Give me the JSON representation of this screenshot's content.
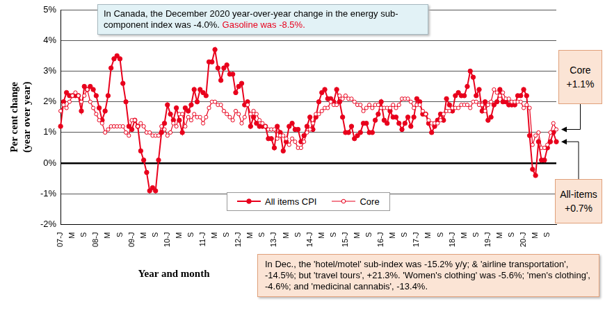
{
  "chart_data": {
    "type": "line",
    "x_label": "Year and month",
    "y_label": [
      "Per cent change",
      "(year over year)"
    ],
    "categories": [
      "07-J",
      null,
      null,
      null,
      "M",
      null,
      null,
      null,
      "S",
      null,
      null,
      null,
      "08-J",
      null,
      null,
      null,
      "M",
      null,
      null,
      null,
      "S",
      null,
      null,
      null,
      "09-J",
      null,
      null,
      null,
      "M",
      null,
      null,
      null,
      "S",
      null,
      null,
      null,
      "10-J",
      null,
      null,
      null,
      "M",
      null,
      null,
      null,
      "S",
      null,
      null,
      null,
      "11-J",
      null,
      null,
      null,
      "M",
      null,
      null,
      null,
      "S",
      null,
      null,
      null,
      "12-J",
      null,
      null,
      null,
      "M",
      null,
      null,
      null,
      "S",
      null,
      null,
      null,
      "13-J",
      null,
      null,
      null,
      "M",
      null,
      null,
      null,
      "S",
      null,
      null,
      null,
      "14-J",
      null,
      null,
      null,
      "M",
      null,
      null,
      null,
      "S",
      null,
      null,
      null,
      "15-J",
      null,
      null,
      null,
      "M",
      null,
      null,
      null,
      "S",
      null,
      null,
      null,
      "16-J",
      null,
      null,
      null,
      "M",
      null,
      null,
      null,
      "S",
      null,
      null,
      null,
      "17-J",
      null,
      null,
      null,
      "M",
      null,
      null,
      null,
      "S",
      null,
      null,
      null,
      "18-J",
      null,
      null,
      null,
      "M",
      null,
      null,
      null,
      "S",
      null,
      null,
      null,
      "19-J",
      null,
      null,
      null,
      "M",
      null,
      null,
      null,
      "S",
      null,
      null,
      null,
      "20-J",
      null,
      null,
      null,
      "M",
      null,
      null,
      null,
      "S",
      null,
      null,
      null
    ],
    "series": [
      {
        "name": "All items CPI",
        "color": "#e8001c",
        "marker": "circle",
        "line_style": "solid",
        "values": [
          1.2,
          2.0,
          2.3,
          2.2,
          2.2,
          2.2,
          2.2,
          1.7,
          2.5,
          2.4,
          2.5,
          2.4,
          2.2,
          1.8,
          1.4,
          1.7,
          2.2,
          3.1,
          3.4,
          3.5,
          3.4,
          2.6,
          2.0,
          1.2,
          1.1,
          1.4,
          1.2,
          0.4,
          0.1,
          -0.3,
          -0.9,
          -0.8,
          -0.9,
          0.1,
          1.0,
          1.3,
          1.9,
          1.6,
          1.4,
          1.8,
          1.4,
          1.0,
          1.8,
          1.7,
          1.9,
          2.4,
          2.0,
          2.4,
          2.3,
          2.2,
          3.3,
          3.3,
          3.7,
          3.1,
          2.7,
          3.1,
          3.2,
          2.9,
          2.9,
          2.3,
          2.5,
          2.6,
          1.9,
          2.0,
          1.2,
          1.5,
          1.3,
          1.2,
          1.2,
          1.2,
          0.8,
          0.8,
          0.5,
          1.2,
          1.0,
          0.4,
          0.7,
          1.2,
          1.3,
          1.1,
          1.1,
          0.7,
          0.9,
          1.2,
          1.5,
          1.1,
          1.5,
          2.0,
          2.3,
          2.4,
          2.1,
          2.1,
          2.0,
          2.4,
          2.0,
          1.5,
          1.0,
          1.0,
          1.2,
          0.8,
          0.9,
          1.0,
          1.3,
          1.3,
          1.0,
          1.0,
          1.4,
          1.6,
          2.0,
          1.4,
          1.3,
          1.7,
          1.5,
          1.5,
          1.3,
          1.1,
          1.3,
          1.5,
          1.2,
          1.5,
          2.1,
          2.0,
          1.6,
          1.6,
          1.3,
          1.0,
          1.2,
          1.4,
          1.6,
          1.4,
          2.1,
          1.9,
          1.7,
          2.2,
          2.3,
          2.2,
          2.2,
          2.5,
          3.0,
          2.8,
          2.2,
          2.4,
          1.7,
          2.0,
          1.4,
          1.5,
          1.9,
          2.0,
          2.4,
          2.0,
          2.0,
          1.9,
          1.9,
          1.9,
          2.2,
          2.2,
          2.4,
          2.2,
          0.9,
          -0.2,
          -0.4,
          0.7,
          0.1,
          0.1,
          0.5,
          0.7,
          1.0,
          0.7
        ]
      },
      {
        "name": "Core",
        "color": "#e8001c",
        "marker": "open_circle",
        "line_style": "solid",
        "values": [
          1.7,
          1.9,
          1.8,
          2.0,
          2.2,
          2.3,
          2.2,
          2.0,
          2.2,
          2.4,
          2.0,
          1.8,
          1.6,
          1.4,
          1.3,
          1.0,
          1.1,
          1.2,
          1.2,
          1.2,
          1.2,
          1.2,
          1.0,
          0.9,
          1.4,
          1.4,
          1.2,
          1.3,
          1.2,
          1.0,
          1.0,
          0.9,
          0.9,
          0.9,
          1.2,
          1.1,
          0.9,
          1.0,
          1.3,
          1.2,
          1.6,
          1.6,
          1.2,
          1.5,
          1.4,
          1.6,
          1.5,
          1.5,
          1.3,
          1.5,
          1.8,
          2.0,
          2.0,
          1.9,
          1.9,
          1.7,
          1.6,
          1.5,
          1.4,
          1.7,
          1.6,
          1.3,
          1.5,
          1.9,
          1.6,
          1.7,
          1.6,
          1.4,
          1.3,
          1.2,
          1.1,
          1.1,
          1.1,
          0.8,
          0.9,
          0.9,
          0.8,
          0.6,
          0.8,
          0.7,
          0.5,
          0.5,
          0.7,
          1.0,
          1.1,
          1.3,
          1.6,
          1.6,
          1.7,
          1.8,
          1.8,
          2.0,
          1.9,
          1.9,
          2.2,
          2.1,
          2.2,
          2.1,
          2.1,
          2.0,
          1.9,
          1.9,
          1.7,
          1.8,
          1.9,
          1.8,
          1.9,
          1.9,
          1.8,
          1.8,
          1.8,
          1.8,
          1.9,
          1.8,
          1.9,
          2.1,
          2.1,
          2.1,
          2.0,
          1.8,
          1.9,
          1.9,
          1.7,
          1.6,
          1.4,
          1.3,
          1.3,
          1.3,
          1.4,
          1.6,
          1.7,
          1.7,
          1.8,
          1.8,
          1.8,
          1.9,
          1.9,
          1.9,
          1.8,
          2.0,
          2.0,
          1.9,
          1.9,
          1.7,
          1.9,
          2.0,
          2.4,
          2.3,
          2.2,
          2.3,
          2.1,
          2.1,
          2.0,
          2.0,
          2.0,
          2.0,
          1.8,
          1.9,
          1.8,
          0.6,
          0.9,
          1.0,
          0.5,
          0.5,
          0.6,
          1.0,
          1.3,
          1.1
        ]
      }
    ],
    "ylim": [
      -2,
      5
    ],
    "yticks": [
      {
        "value": -2,
        "label": "-2%"
      },
      {
        "value": -1,
        "label": "-1%"
      },
      {
        "value": 0,
        "label": "0%"
      },
      {
        "value": 1,
        "label": "1%"
      },
      {
        "value": 2,
        "label": "2%"
      },
      {
        "value": 3,
        "label": "3%"
      },
      {
        "value": 4,
        "label": "4%"
      },
      {
        "value": 5,
        "label": "5%"
      }
    ],
    "grid": true,
    "legend": "lower center",
    "annotations": [
      {
        "segments": [
          {
            "text": "In Canada, the December 2020 year-over-year change in the energy sub-component index was -4.0%.",
            "color": "#000000"
          },
          {
            "text": "Gasoline was -8.5%.",
            "color": "#e8001c"
          }
        ]
      },
      {
        "lines": [
          "Core",
          "+1.1%"
        ]
      },
      {
        "lines": [
          "All-items",
          "+0.7%"
        ]
      },
      {
        "text": "In Dec., the 'hotel/motel' sub-index was -15.2% y/y; & 'airline transportation', -14.5%; but 'travel tours', +21.3%. 'Women's clothing' was -5.6%; 'men's clothing', -4.6%; and 'medicinal cannabis', -13.4%."
      }
    ]
  }
}
